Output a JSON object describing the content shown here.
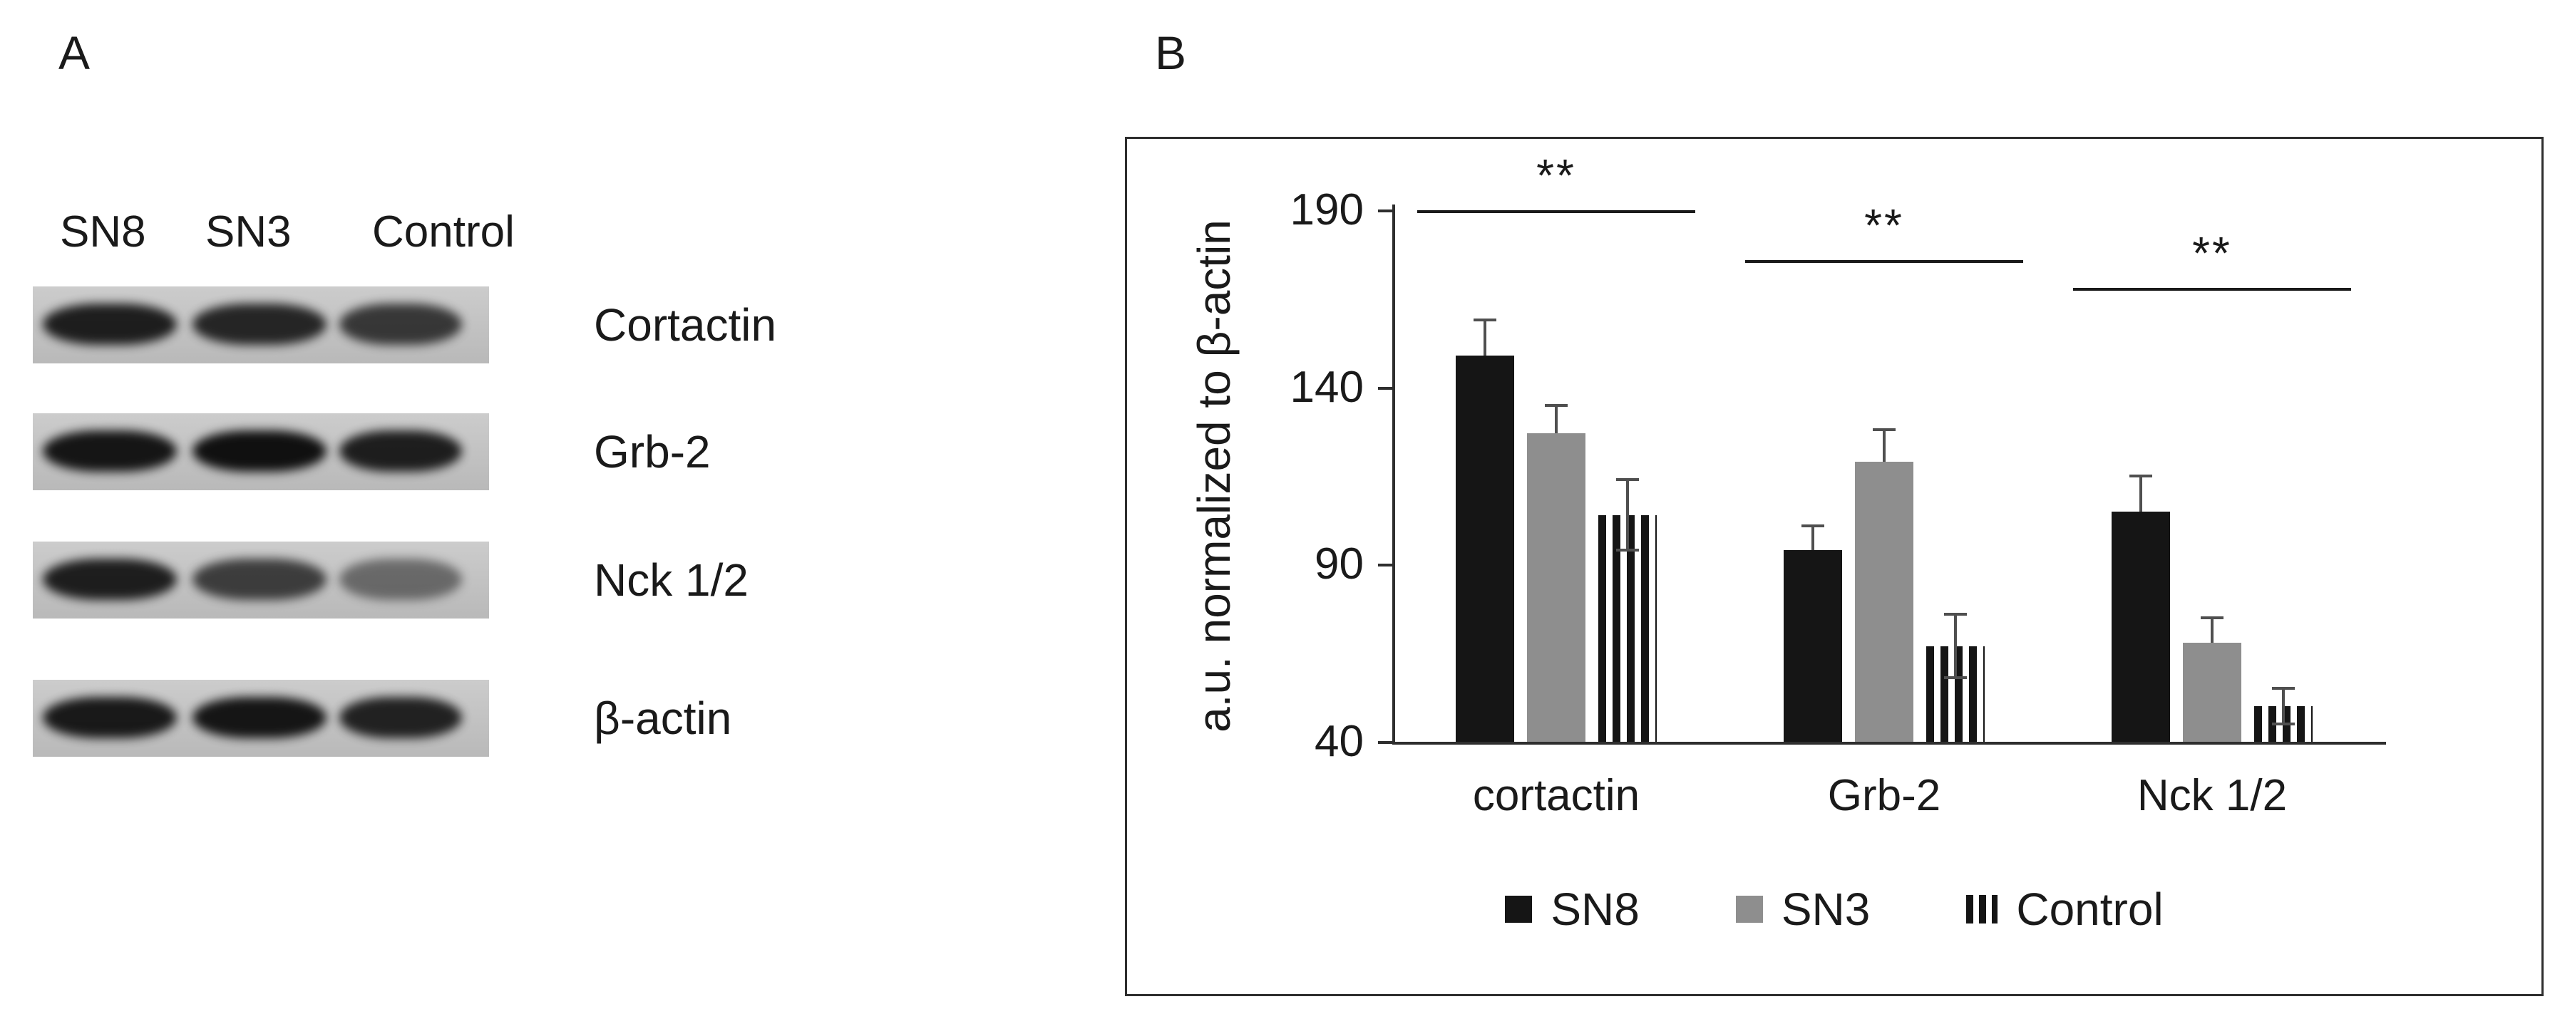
{
  "figure": {
    "panel_a_label": "A",
    "panel_b_label": "B"
  },
  "panel_a": {
    "lanes": [
      "SN8",
      "SN3",
      "Control"
    ],
    "rows": [
      {
        "label": "Cortactin",
        "band_intensity": [
          0.92,
          0.88,
          0.78
        ]
      },
      {
        "label": "Grb-2",
        "band_intensity": [
          0.97,
          1.0,
          0.92
        ]
      },
      {
        "label": "Nck 1/2",
        "band_intensity": [
          0.92,
          0.75,
          0.5
        ]
      },
      {
        "label": "β-actin",
        "band_intensity": [
          0.95,
          0.97,
          0.9
        ]
      }
    ]
  },
  "chart_data": {
    "type": "bar",
    "title": "",
    "xlabel": "",
    "ylabel": "a.u. normalized to β-actin",
    "categories": [
      "cortactin",
      "Grb-2",
      "Nck 1/2"
    ],
    "series": [
      {
        "name": "SN8",
        "style": "solid-black",
        "color": "#151515",
        "values": [
          149,
          94,
          105
        ],
        "errors": [
          10,
          7,
          10
        ]
      },
      {
        "name": "SN3",
        "style": "solid-gray",
        "color": "#8e8e8e",
        "values": [
          127,
          119,
          68
        ],
        "errors": [
          8,
          9,
          7
        ]
      },
      {
        "name": "Control",
        "style": "striped",
        "color": "#151515",
        "values": [
          104,
          67,
          50
        ],
        "errors": [
          10,
          9,
          5
        ]
      }
    ],
    "yticks": [
      40,
      90,
      140,
      190
    ],
    "ylim": [
      40,
      190
    ],
    "grid": false,
    "legend_position": "bottom",
    "significance": [
      {
        "group": "cortactin",
        "label": "**",
        "y": 190
      },
      {
        "group": "Grb-2",
        "label": "**",
        "y": 176
      },
      {
        "group": "Nck 1/2",
        "label": "**",
        "y": 168
      }
    ]
  }
}
